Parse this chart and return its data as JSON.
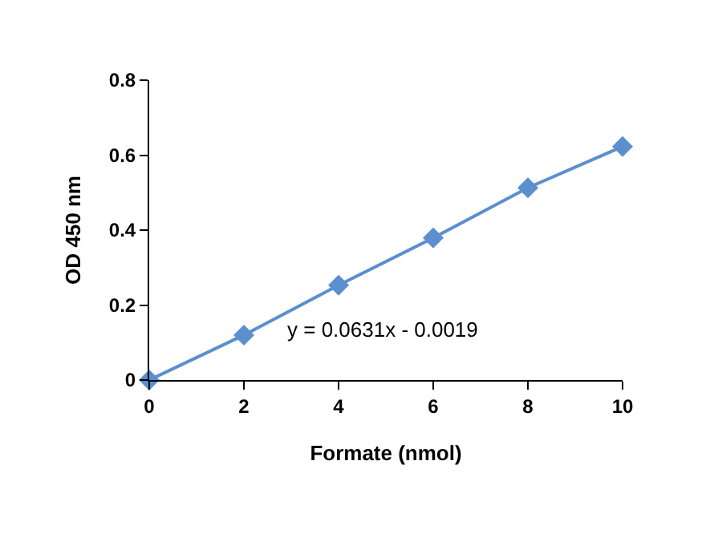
{
  "chart_data": {
    "type": "line",
    "xlabel": "Formate (nmol)",
    "ylabel": "OD 450 nm",
    "x": [
      0,
      2,
      4,
      6,
      8,
      10
    ],
    "series": [
      {
        "color": "#5b8fcf",
        "values": [
          0,
          0.12,
          0.253,
          0.379,
          0.513,
          0.623
        ]
      }
    ],
    "xlim": [
      0,
      10
    ],
    "xticks": [
      0,
      2,
      4,
      6,
      8,
      10
    ],
    "ylim": [
      0,
      0.8
    ],
    "yticks": [
      0,
      0.2,
      0.4,
      0.6,
      0.8
    ],
    "marker": "diamond",
    "line_style": "solid",
    "annotations": [
      "y = 0.0631x - 0.0019"
    ]
  }
}
